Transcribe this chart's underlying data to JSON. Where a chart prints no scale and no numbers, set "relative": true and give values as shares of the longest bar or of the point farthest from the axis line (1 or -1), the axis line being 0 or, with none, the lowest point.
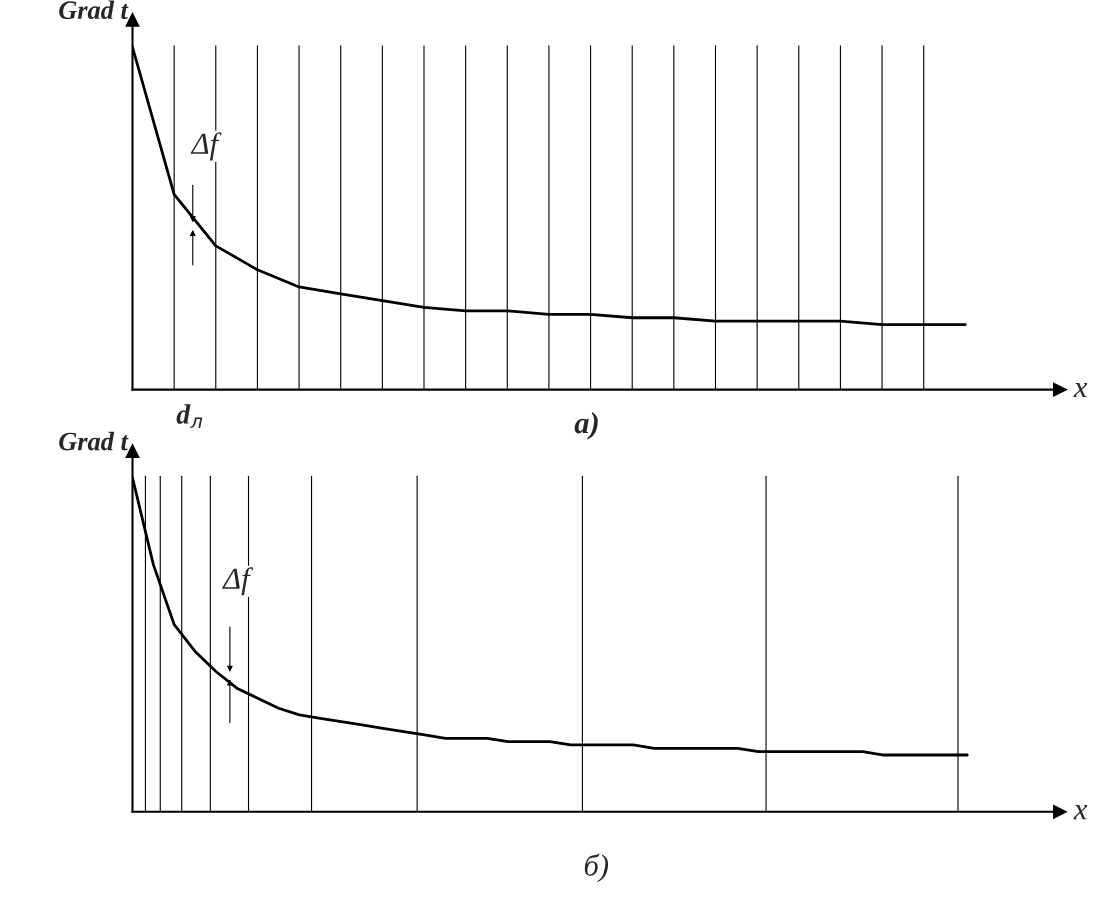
{
  "chart_data": [
    {
      "type": "line",
      "title": "a)",
      "xlabel": "x",
      "ylabel": "Grad t",
      "relative": true,
      "grid": "x",
      "marker": "none",
      "categories": [
        null,
        null,
        null,
        null,
        null,
        null,
        null,
        null,
        null,
        null,
        null,
        null,
        null,
        null,
        null,
        null,
        null,
        null,
        null,
        null,
        null
      ],
      "series": [
        {
          "color": "#000000",
          "values": [
            1,
            0.57,
            0.42,
            0.35,
            0.3,
            0.28,
            0.26,
            0.24,
            0.23,
            0.23,
            0.22,
            0.22,
            0.21,
            0.21,
            0.2,
            0.2,
            0.2,
            0.2,
            0.19,
            0.19,
            0.19
          ]
        }
      ],
      "annotations": [
        "Δf",
        "d$_{л}$"
      ]
    },
    {
      "type": "line",
      "title": "б)",
      "xlabel": "x",
      "ylabel": "Grad t",
      "relative": true,
      "grid": false,
      "marker": "none",
      "categories": [
        null,
        null,
        null,
        null,
        null,
        null,
        null,
        null,
        null,
        null,
        null,
        null,
        null,
        null,
        null,
        null,
        null,
        null,
        null,
        null,
        null,
        null,
        null,
        null,
        null,
        null,
        null,
        null,
        null,
        null,
        null,
        null,
        null,
        null,
        null,
        null,
        null,
        null,
        null,
        null,
        null
      ],
      "series": [
        {
          "color": "#000000",
          "values": [
            1,
            0.74,
            0.56,
            0.48,
            0.42,
            0.37,
            0.34,
            0.31,
            0.29,
            0.28,
            0.27,
            0.26,
            0.25,
            0.24,
            0.23,
            0.22,
            0.22,
            0.22,
            0.21,
            0.21,
            0.21,
            0.2,
            0.2,
            0.2,
            0.2,
            0.19,
            0.19,
            0.19,
            0.19,
            0.19,
            0.18,
            0.18,
            0.18,
            0.18,
            0.18,
            0.18,
            0.17,
            0.17,
            0.17,
            0.17,
            0.17
          ]
        }
      ],
      "annotations": [
        "Δf"
      ]
    }
  ]
}
